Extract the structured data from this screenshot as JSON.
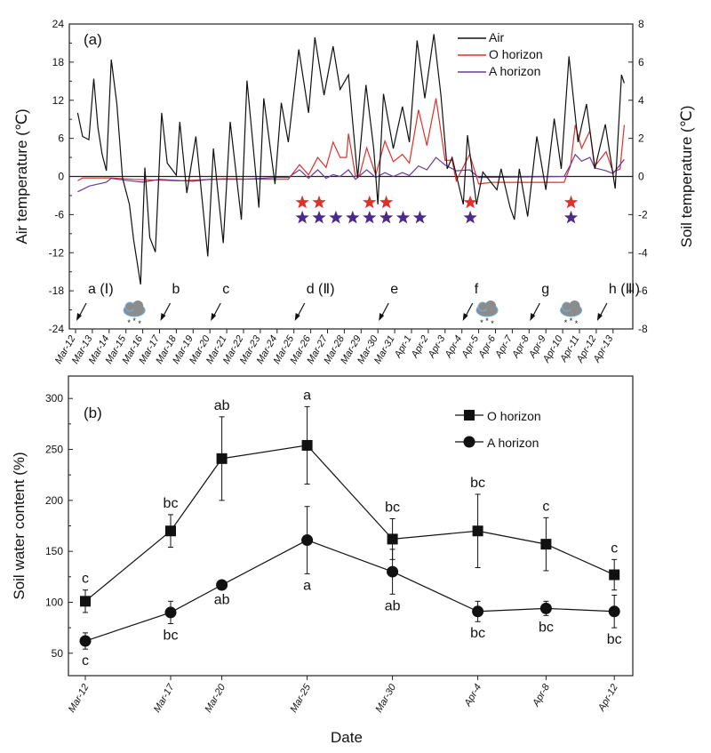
{
  "chart_data": [
    {
      "type": "line",
      "panel_label": "(a)",
      "ylabel": "Air temperature (℃)",
      "y2label": "Soil temperature (℃)",
      "ylim": [
        -24,
        24
      ],
      "y2lim": [
        -8,
        8
      ],
      "yticks": [
        -24,
        -18,
        -12,
        -6,
        0,
        6,
        12,
        18,
        24
      ],
      "y2ticks": [
        -8,
        -6,
        -4,
        -2,
        0,
        2,
        4,
        6,
        8
      ],
      "xticks": [
        "Mar-12",
        "Mar-13",
        "Mar-14",
        "Mar-15",
        "Mar-16",
        "Mar-17",
        "Mar-18",
        "Mar-19",
        "Mar-20",
        "Mar-21",
        "Mar-22",
        "Mar-23",
        "Mar-24",
        "Mar-25",
        "Mar-26",
        "Mar-27",
        "Mar-28",
        "Mar-29",
        "Mar-30",
        "Mar-31",
        "Apr-1",
        "Apr-2",
        "Apr-3",
        "Apr-4",
        "Apr-5",
        "Apr-6",
        "Apr-7",
        "Apr-8",
        "Apr-9",
        "Apr-10",
        "Apr-11",
        "Apr-12",
        "Apr-13"
      ],
      "legend_position": "top-right",
      "series": [
        {
          "name": "Air",
          "axis": "left",
          "color": "#111111",
          "points": [
            [
              "Mar-12 03:00",
              10.0
            ],
            [
              "Mar-12 10:00",
              6.3
            ],
            [
              "Mar-12 19:00",
              5.8
            ],
            [
              "Mar-13 02:00",
              15.4
            ],
            [
              "Mar-13 08:00",
              7.7
            ],
            [
              "Mar-13 14:00",
              3.5
            ],
            [
              "Mar-13 20:00",
              0.9
            ],
            [
              "Mar-14 03:00",
              18.4
            ],
            [
              "Mar-14 11:00",
              11.4
            ],
            [
              "Mar-14 19:00",
              -0.2
            ],
            [
              "Mar-15 05:00",
              -4.4
            ],
            [
              "Mar-15 11:00",
              -10
            ],
            [
              "Mar-15 21:00",
              -17
            ],
            [
              "Mar-16 03:00",
              1.4
            ],
            [
              "Mar-16 10:00",
              -9.6
            ],
            [
              "Mar-16 18:00",
              -11.9
            ],
            [
              "Mar-17 03:00",
              10
            ],
            [
              "Mar-17 11:00",
              2.1
            ],
            [
              "Mar-18 00:00",
              0.2
            ],
            [
              "Mar-18 05:00",
              8.6
            ],
            [
              "Mar-18 15:00",
              -2.6
            ],
            [
              "Mar-19 04:00",
              6.3
            ],
            [
              "Mar-19 21:00",
              -12.6
            ],
            [
              "Mar-20 05:00",
              4.4
            ],
            [
              "Mar-20 19:00",
              -10.5
            ],
            [
              "Mar-21 05:00",
              8.6
            ],
            [
              "Mar-21 21:00",
              -6.8
            ],
            [
              "Mar-22 05:00",
              15.1
            ],
            [
              "Mar-22 22:00",
              -4.9
            ],
            [
              "Mar-23 05:00",
              12.3
            ],
            [
              "Mar-23 21:00",
              -1.2
            ],
            [
              "Mar-24 06:00",
              11.6
            ],
            [
              "Mar-24 16:00",
              5.4
            ],
            [
              "Mar-25 07:00",
              20
            ],
            [
              "Mar-25 21:00",
              10
            ],
            [
              "Mar-26 06:00",
              21.9
            ],
            [
              "Mar-26 19:00",
              12.8
            ],
            [
              "Mar-27 08:00",
              20.5
            ],
            [
              "Mar-27 18:00",
              13.7
            ],
            [
              "Mar-28 06:00",
              16
            ],
            [
              "Mar-28 19:00",
              -0.2
            ],
            [
              "Mar-29 07:00",
              14.4
            ],
            [
              "Mar-29 18:00",
              4.4
            ],
            [
              "Mar-30 00:00",
              -4.4
            ],
            [
              "Mar-30 08:00",
              13
            ],
            [
              "Mar-30 22:00",
              4.4
            ],
            [
              "Mar-31 11:00",
              11
            ],
            [
              "Mar-31 21:00",
              5.4
            ],
            [
              "Apr-1 08:00",
              21.4
            ],
            [
              "Apr-1 19:00",
              12.3
            ],
            [
              "Apr-2 08:00",
              22.4
            ],
            [
              "Apr-2 18:00",
              12.8
            ],
            [
              "Apr-3 03:00",
              1.2
            ],
            [
              "Apr-3 10:00",
              3
            ],
            [
              "Apr-4 02:00",
              -4.4
            ],
            [
              "Apr-4 08:00",
              6.5
            ],
            [
              "Apr-4 21:00",
              -4.4
            ],
            [
              "Apr-5 06:00",
              0.7
            ],
            [
              "Apr-6 02:00",
              -2.1
            ],
            [
              "Apr-6 08:00",
              1.2
            ],
            [
              "Apr-6 21:00",
              -4.9
            ],
            [
              "Apr-7 03:00",
              -6.8
            ],
            [
              "Apr-7 10:00",
              1.2
            ],
            [
              "Apr-7 22:00",
              -6.3
            ],
            [
              "Apr-8 11:00",
              6.3
            ],
            [
              "Apr-9 00:00",
              -2.1
            ],
            [
              "Apr-9 12:00",
              9.1
            ],
            [
              "Apr-9 22:00",
              1.2
            ],
            [
              "Apr-10 09:00",
              18.9
            ],
            [
              "Apr-10 22:00",
              5.4
            ],
            [
              "Apr-11 10:00",
              11.4
            ],
            [
              "Apr-11 22:00",
              1.2
            ],
            [
              "Apr-12 13:00",
              8.2
            ],
            [
              "Apr-13 03:00",
              -1.9
            ],
            [
              "Apr-13 12:00",
              16
            ],
            [
              "Apr-13 16:00",
              14.7
            ]
          ]
        },
        {
          "name": "O horizon",
          "axis": "right",
          "color": "#e0302a",
          "points": [
            [
              "Mar-12 03:00",
              -0.23
            ],
            [
              "Mar-12 10:00",
              -0.08
            ],
            [
              "Mar-14 03:00",
              -0.08
            ],
            [
              "Mar-15 11:00",
              -0.15
            ],
            [
              "Mar-18 03:00",
              -0.23
            ],
            [
              "Mar-20 19:00",
              -0.12
            ],
            [
              "Mar-23 11:00",
              -0.15
            ],
            [
              "Mar-24 16:00",
              -0.15
            ],
            [
              "Mar-25 08:00",
              0.62
            ],
            [
              "Mar-25 21:00",
              0.08
            ],
            [
              "Mar-26 10:00",
              1.0
            ],
            [
              "Mar-26 22:00",
              0.47
            ],
            [
              "Mar-27 08:00",
              1.8
            ],
            [
              "Mar-27 18:00",
              1.0
            ],
            [
              "Mar-28 03:00",
              1.0
            ],
            [
              "Mar-28 06:00",
              2.25
            ],
            [
              "Mar-28 16:00",
              0
            ],
            [
              "Mar-28 22:00",
              0.08
            ],
            [
              "Mar-29 08:00",
              1.5
            ],
            [
              "Mar-29 21:00",
              0.08
            ],
            [
              "Mar-30 10:00",
              1.86
            ],
            [
              "Mar-30 22:00",
              0.78
            ],
            [
              "Mar-31 11:00",
              1.16
            ],
            [
              "Mar-31 21:00",
              0.7
            ],
            [
              "Apr-1 10:00",
              3.5
            ],
            [
              "Apr-1 22:00",
              1.63
            ],
            [
              "Apr-2 11:00",
              4.1
            ],
            [
              "Apr-3 00:00",
              0.85
            ],
            [
              "Apr-3 10:00",
              0.85
            ],
            [
              "Apr-3 16:00",
              -0.23
            ],
            [
              "Apr-4 11:00",
              1.16
            ],
            [
              "Apr-5 00:00",
              -0.39
            ],
            [
              "Apr-5 19:00",
              -0.31
            ],
            [
              "Apr-10 02:00",
              -0.31
            ],
            [
              "Apr-10 11:00",
              0.54
            ],
            [
              "Apr-10 18:00",
              2.7
            ],
            [
              "Apr-11 03:00",
              1.48
            ],
            [
              "Apr-11 15:00",
              2.4
            ],
            [
              "Apr-11 22:00",
              0.54
            ],
            [
              "Apr-12 14:00",
              1.3
            ],
            [
              "Apr-13 00:00",
              0.23
            ],
            [
              "Apr-13 10:00",
              0.39
            ],
            [
              "Apr-13 16:00",
              2.7
            ]
          ]
        },
        {
          "name": "A horizon",
          "axis": "right",
          "color": "#6a3aa0",
          "points": [
            [
              "Mar-12 03:00",
              -0.8
            ],
            [
              "Mar-12 20:00",
              -0.5
            ],
            [
              "Mar-13 20:00",
              -0.3
            ],
            [
              "Mar-14 03:00",
              -0.1
            ],
            [
              "Mar-15 00:00",
              -0.2
            ],
            [
              "Mar-16 00:00",
              -0.3
            ],
            [
              "Mar-17 00:00",
              -0.15
            ],
            [
              "Mar-18 00:00",
              -0.2
            ],
            [
              "Mar-19 00:00",
              -0.25
            ],
            [
              "Mar-20 00:00",
              -0.15
            ],
            [
              "Mar-22 00:00",
              -0.15
            ],
            [
              "Mar-24 00:00",
              -0.05
            ],
            [
              "Mar-24 16:00",
              -0.05
            ],
            [
              "Mar-25 08:00",
              0.35
            ],
            [
              "Mar-25 21:00",
              -0.1
            ],
            [
              "Mar-26 10:00",
              0.35
            ],
            [
              "Mar-26 22:00",
              -0.1
            ],
            [
              "Mar-27 08:00",
              0.1
            ],
            [
              "Mar-27 18:00",
              0
            ],
            [
              "Mar-28 06:00",
              0.35
            ],
            [
              "Mar-28 16:00",
              -0.15
            ],
            [
              "Mar-29 08:00",
              0.35
            ],
            [
              "Mar-29 21:00",
              -0.05
            ],
            [
              "Mar-30 10:00",
              0.2
            ],
            [
              "Mar-30 22:00",
              0
            ],
            [
              "Mar-31 11:00",
              0.2
            ],
            [
              "Mar-31 21:00",
              0.05
            ],
            [
              "Apr-1 10:00",
              0.55
            ],
            [
              "Apr-1 22:00",
              0.35
            ],
            [
              "Apr-2 11:00",
              1.0
            ],
            [
              "Apr-3 00:00",
              0.6
            ],
            [
              "Apr-3 16:00",
              0.3
            ],
            [
              "Apr-4 11:00",
              0.35
            ],
            [
              "Apr-5 00:00",
              -0.05
            ],
            [
              "Apr-10 02:00",
              0
            ],
            [
              "Apr-10 11:00",
              0.6
            ],
            [
              "Apr-10 18:00",
              1.15
            ],
            [
              "Apr-11 03:00",
              0.8
            ],
            [
              "Apr-11 15:00",
              1.0
            ],
            [
              "Apr-11 22:00",
              0.45
            ],
            [
              "Apr-12 14:00",
              0.3
            ],
            [
              "Apr-13 00:00",
              0.15
            ],
            [
              "Apr-13 16:00",
              0.9
            ]
          ]
        }
      ],
      "stars": {
        "O horizon": {
          "color": "#e0302a",
          "dates": [
            "Mar-25",
            "Mar-26",
            "Mar-29",
            "Mar-30",
            "Apr-4",
            "Apr-10"
          ]
        },
        "A horizon": {
          "color": "#4b2a8c",
          "dates": [
            "Mar-25",
            "Mar-26",
            "Mar-27",
            "Mar-28",
            "Mar-29",
            "Mar-30",
            "Mar-31",
            "Apr-1",
            "Apr-4",
            "Apr-10"
          ]
        }
      },
      "sampling_events": [
        {
          "label": "a (Ⅰ)",
          "date": "Mar-12"
        },
        {
          "label": "b",
          "date": "Mar-17"
        },
        {
          "label": "c",
          "date": "Mar-20"
        },
        {
          "label": "d (Ⅱ)",
          "date": "Mar-25"
        },
        {
          "label": "e",
          "date": "Mar-30"
        },
        {
          "label": "f",
          "date": "Apr-4"
        },
        {
          "label": "g",
          "date": "Apr-8"
        },
        {
          "label": "h (Ⅲ)",
          "date": "Apr-12"
        }
      ],
      "snow_events": [
        "Mar-15",
        "Apr-5",
        "Apr-10"
      ],
      "snow_icon": "snow-cloud-icon"
    },
    {
      "type": "line",
      "panel_label": "(b)",
      "xlabel": "Date",
      "ylabel": "Soil water content (%)",
      "ylim": [
        28,
        322
      ],
      "yticks": [
        50,
        100,
        150,
        200,
        250,
        300
      ],
      "categories": [
        "Mar-12",
        "Mar-17",
        "Mar-20",
        "Mar-25",
        "Mar-30",
        "Apr-4",
        "Apr-8",
        "Apr-12"
      ],
      "legend_position": "top-right",
      "series": [
        {
          "name": "O horizon",
          "marker": "square",
          "values": [
            101,
            170,
            241,
            254,
            162,
            170,
            157,
            127
          ],
          "errors": [
            11,
            16,
            41,
            38,
            20,
            36,
            26,
            15
          ],
          "letters": [
            "c",
            "bc",
            "ab",
            "a",
            "bc",
            "bc",
            "c",
            "c"
          ]
        },
        {
          "name": "A horizon",
          "marker": "circle",
          "values": [
            62,
            90,
            117,
            161,
            130,
            91,
            94,
            91
          ],
          "errors": [
            8,
            11,
            3,
            33,
            22,
            10,
            7,
            16
          ],
          "letters": [
            "c",
            "bc",
            "ab",
            "a",
            "ab",
            "bc",
            "bc",
            "bc"
          ]
        }
      ]
    }
  ]
}
